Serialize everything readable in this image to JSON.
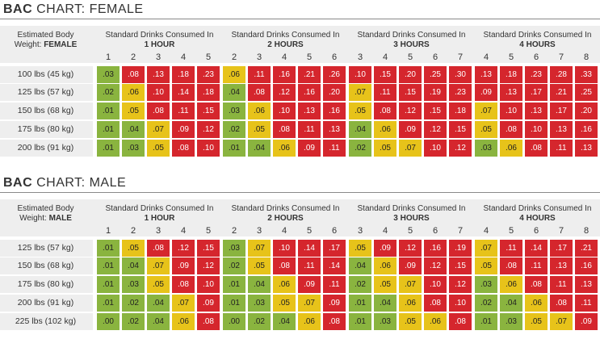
{
  "colors": {
    "green": "#8ab43f",
    "yellow": "#e7c31a",
    "red": "#d5262d"
  },
  "charts": [
    {
      "title_bold": "BAC",
      "title_rest": "CHART: FEMALE",
      "weight_label_line1": "Estimated Body",
      "weight_label_line2_prefix": "Weight:",
      "weight_label_line2_bold": "FEMALE",
      "group_title_line1": "Standard Drinks Consumed In",
      "groups": [
        {
          "hours": "1 HOUR",
          "drinks": [
            "1",
            "2",
            "3",
            "4",
            "5"
          ]
        },
        {
          "hours": "2 HOURS",
          "drinks": [
            "2",
            "3",
            "4",
            "5",
            "6"
          ]
        },
        {
          "hours": "3 HOURS",
          "drinks": [
            "3",
            "4",
            "5",
            "6",
            "7"
          ]
        },
        {
          "hours": "4 HOURS",
          "drinks": [
            "4",
            "5",
            "6",
            "7",
            "8"
          ]
        }
      ],
      "rows": [
        {
          "label": "100 lbs (45 kg)",
          "groups": [
            [
              ".03",
              ".08",
              ".13",
              ".18",
              ".23"
            ],
            [
              ".06",
              ".11",
              ".16",
              ".21",
              ".26"
            ],
            [
              ".10",
              ".15",
              ".20",
              ".25",
              ".30"
            ],
            [
              ".13",
              ".18",
              ".23",
              ".28",
              ".33"
            ]
          ],
          "colors": [
            [
              "g",
              "r",
              "r",
              "r",
              "r"
            ],
            [
              "y",
              "r",
              "r",
              "r",
              "r"
            ],
            [
              "r",
              "r",
              "r",
              "r",
              "r"
            ],
            [
              "r",
              "r",
              "r",
              "r",
              "r"
            ]
          ]
        },
        {
          "label": "125 lbs (57 kg)",
          "groups": [
            [
              ".02",
              ".06",
              ".10",
              ".14",
              ".18"
            ],
            [
              ".04",
              ".08",
              ".12",
              ".16",
              ".20"
            ],
            [
              ".07",
              ".11",
              ".15",
              ".19",
              ".23"
            ],
            [
              ".09",
              ".13",
              ".17",
              ".21",
              ".25"
            ]
          ],
          "colors": [
            [
              "g",
              "y",
              "r",
              "r",
              "r"
            ],
            [
              "g",
              "r",
              "r",
              "r",
              "r"
            ],
            [
              "y",
              "r",
              "r",
              "r",
              "r"
            ],
            [
              "r",
              "r",
              "r",
              "r",
              "r"
            ]
          ]
        },
        {
          "label": "150 lbs (68 kg)",
          "groups": [
            [
              ".01",
              ".05",
              ".08",
              ".11",
              ".15"
            ],
            [
              ".03",
              ".06",
              ".10",
              ".13",
              ".16"
            ],
            [
              ".05",
              ".08",
              ".12",
              ".15",
              ".18"
            ],
            [
              ".07",
              ".10",
              ".13",
              ".17",
              ".20"
            ]
          ],
          "colors": [
            [
              "g",
              "y",
              "r",
              "r",
              "r"
            ],
            [
              "g",
              "y",
              "r",
              "r",
              "r"
            ],
            [
              "y",
              "r",
              "r",
              "r",
              "r"
            ],
            [
              "y",
              "r",
              "r",
              "r",
              "r"
            ]
          ]
        },
        {
          "label": "175 lbs (80 kg)",
          "groups": [
            [
              ".01",
              ".04",
              ".07",
              ".09",
              ".12"
            ],
            [
              ".02",
              ".05",
              ".08",
              ".11",
              ".13"
            ],
            [
              ".04",
              ".06",
              ".09",
              ".12",
              ".15"
            ],
            [
              ".05",
              ".08",
              ".10",
              ".13",
              ".16"
            ]
          ],
          "colors": [
            [
              "g",
              "g",
              "y",
              "r",
              "r"
            ],
            [
              "g",
              "y",
              "r",
              "r",
              "r"
            ],
            [
              "g",
              "y",
              "r",
              "r",
              "r"
            ],
            [
              "y",
              "r",
              "r",
              "r",
              "r"
            ]
          ]
        },
        {
          "label": "200 lbs (91 kg)",
          "groups": [
            [
              ".01",
              ".03",
              ".05",
              ".08",
              ".10"
            ],
            [
              ".01",
              ".04",
              ".06",
              ".09",
              ".11"
            ],
            [
              ".02",
              ".05",
              ".07",
              ".10",
              ".12"
            ],
            [
              ".03",
              ".06",
              ".08",
              ".11",
              ".13"
            ]
          ],
          "colors": [
            [
              "g",
              "g",
              "y",
              "r",
              "r"
            ],
            [
              "g",
              "g",
              "y",
              "r",
              "r"
            ],
            [
              "g",
              "y",
              "y",
              "r",
              "r"
            ],
            [
              "g",
              "y",
              "r",
              "r",
              "r"
            ]
          ]
        }
      ]
    },
    {
      "title_bold": "BAC",
      "title_rest": "CHART: MALE",
      "weight_label_line1": "Estimated Body",
      "weight_label_line2_prefix": "Weight:",
      "weight_label_line2_bold": "MALE",
      "group_title_line1": "Standard Drinks Consumed In",
      "groups": [
        {
          "hours": "1 HOUR",
          "drinks": [
            "1",
            "2",
            "3",
            "4",
            "5"
          ]
        },
        {
          "hours": "2 HOURS",
          "drinks": [
            "2",
            "3",
            "4",
            "5",
            "6"
          ]
        },
        {
          "hours": "3 HOURS",
          "drinks": [
            "3",
            "4",
            "5",
            "6",
            "7"
          ]
        },
        {
          "hours": "4 HOURS",
          "drinks": [
            "4",
            "5",
            "6",
            "7",
            "8"
          ]
        }
      ],
      "rows": [
        {
          "label": "125 lbs (57 kg)",
          "groups": [
            [
              ".01",
              ".05",
              ".08",
              ".12",
              ".15"
            ],
            [
              ".03",
              ".07",
              ".10",
              ".14",
              ".17"
            ],
            [
              ".05",
              ".09",
              ".12",
              ".16",
              ".19"
            ],
            [
              ".07",
              ".11",
              ".14",
              ".17",
              ".21"
            ]
          ],
          "colors": [
            [
              "g",
              "y",
              "r",
              "r",
              "r"
            ],
            [
              "g",
              "y",
              "r",
              "r",
              "r"
            ],
            [
              "y",
              "r",
              "r",
              "r",
              "r"
            ],
            [
              "y",
              "r",
              "r",
              "r",
              "r"
            ]
          ]
        },
        {
          "label": "150 lbs (68 kg)",
          "groups": [
            [
              ".01",
              ".04",
              ".07",
              ".09",
              ".12"
            ],
            [
              ".02",
              ".05",
              ".08",
              ".11",
              ".14"
            ],
            [
              ".04",
              ".06",
              ".09",
              ".12",
              ".15"
            ],
            [
              ".05",
              ".08",
              ".11",
              ".13",
              ".16"
            ]
          ],
          "colors": [
            [
              "g",
              "g",
              "y",
              "r",
              "r"
            ],
            [
              "g",
              "y",
              "r",
              "r",
              "r"
            ],
            [
              "g",
              "y",
              "r",
              "r",
              "r"
            ],
            [
              "y",
              "r",
              "r",
              "r",
              "r"
            ]
          ]
        },
        {
          "label": "175 lbs (80 kg)",
          "groups": [
            [
              ".01",
              ".03",
              ".05",
              ".08",
              ".10"
            ],
            [
              ".01",
              ".04",
              ".06",
              ".09",
              ".11"
            ],
            [
              ".02",
              ".05",
              ".07",
              ".10",
              ".12"
            ],
            [
              ".03",
              ".06",
              ".08",
              ".11",
              ".13"
            ]
          ],
          "colors": [
            [
              "g",
              "g",
              "y",
              "r",
              "r"
            ],
            [
              "g",
              "g",
              "y",
              "r",
              "r"
            ],
            [
              "g",
              "y",
              "y",
              "r",
              "r"
            ],
            [
              "g",
              "y",
              "r",
              "r",
              "r"
            ]
          ]
        },
        {
          "label": "200 lbs (91 kg)",
          "groups": [
            [
              ".01",
              ".02",
              ".04",
              ".07",
              ".09"
            ],
            [
              ".01",
              ".03",
              ".05",
              ".07",
              ".09"
            ],
            [
              ".01",
              ".04",
              ".06",
              ".08",
              ".10"
            ],
            [
              ".02",
              ".04",
              ".06",
              ".08",
              ".11"
            ]
          ],
          "colors": [
            [
              "g",
              "g",
              "g",
              "y",
              "r"
            ],
            [
              "g",
              "g",
              "y",
              "y",
              "r"
            ],
            [
              "g",
              "g",
              "y",
              "r",
              "r"
            ],
            [
              "g",
              "g",
              "y",
              "r",
              "r"
            ]
          ]
        },
        {
          "label": "225 lbs (102 kg)",
          "groups": [
            [
              ".00",
              ".02",
              ".04",
              ".06",
              ".08"
            ],
            [
              ".00",
              ".02",
              ".04",
              ".06",
              ".08"
            ],
            [
              ".01",
              ".03",
              ".05",
              ".06",
              ".08"
            ],
            [
              ".01",
              ".03",
              ".05",
              ".07",
              ".09"
            ]
          ],
          "colors": [
            [
              "g",
              "g",
              "g",
              "y",
              "r"
            ],
            [
              "g",
              "g",
              "g",
              "y",
              "r"
            ],
            [
              "g",
              "g",
              "y",
              "y",
              "r"
            ],
            [
              "g",
              "g",
              "y",
              "y",
              "r"
            ]
          ]
        }
      ]
    }
  ]
}
